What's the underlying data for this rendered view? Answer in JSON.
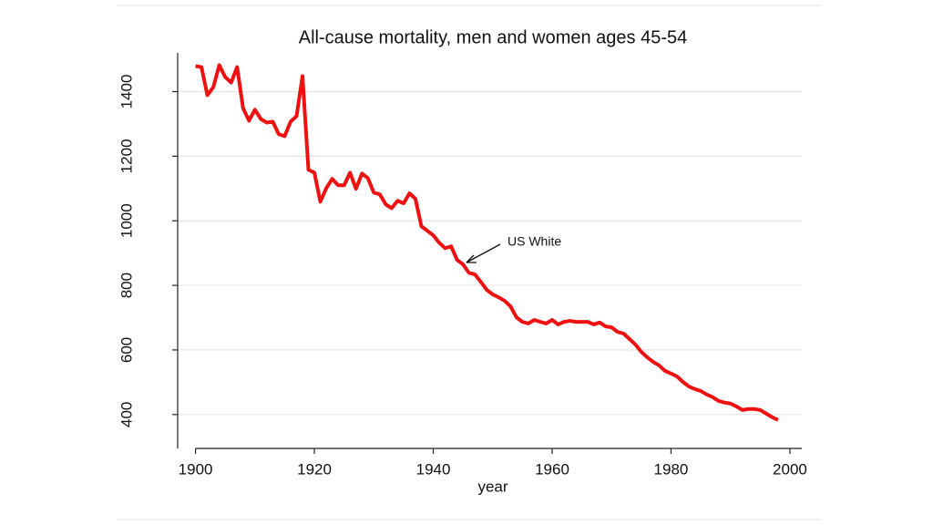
{
  "chart_data": {
    "type": "line",
    "title": "All-cause mortality, men and women ages 45-54",
    "x_label": "year",
    "annotation": "US White",
    "color": "#ee1111",
    "grid": true,
    "xlim": [
      1897,
      2002
    ],
    "xticks": [
      1900,
      1920,
      1940,
      1960,
      1980,
      2000
    ],
    "ylim": [
      295,
      1520
    ],
    "yticks": [
      400,
      600,
      800,
      1000,
      1200,
      1400
    ],
    "x": [
      1900,
      1901,
      1902,
      1903,
      1904,
      1905,
      1906,
      1907,
      1908,
      1909,
      1910,
      1911,
      1912,
      1913,
      1914,
      1915,
      1916,
      1917,
      1918,
      1919,
      1920,
      1921,
      1922,
      1923,
      1924,
      1925,
      1926,
      1927,
      1928,
      1929,
      1930,
      1931,
      1932,
      1933,
      1934,
      1935,
      1936,
      1937,
      1938,
      1939,
      1940,
      1941,
      1942,
      1943,
      1944,
      1945,
      1946,
      1947,
      1948,
      1949,
      1950,
      1951,
      1952,
      1953,
      1954,
      1955,
      1956,
      1957,
      1958,
      1959,
      1960,
      1961,
      1962,
      1963,
      1964,
      1965,
      1966,
      1967,
      1968,
      1969,
      1970,
      1971,
      1972,
      1973,
      1974,
      1975,
      1976,
      1977,
      1978,
      1979,
      1980,
      1981,
      1982,
      1983,
      1984,
      1985,
      1986,
      1987,
      1988,
      1989,
      1990,
      1991,
      1992,
      1993,
      1994,
      1995,
      1996,
      1997,
      1998
    ],
    "values": [
      1479,
      1476,
      1389,
      1414,
      1482,
      1445,
      1428,
      1476,
      1349,
      1310,
      1344,
      1315,
      1304,
      1307,
      1268,
      1262,
      1307,
      1324,
      1448,
      1158,
      1149,
      1059,
      1101,
      1130,
      1110,
      1110,
      1149,
      1099,
      1146,
      1132,
      1087,
      1082,
      1051,
      1039,
      1062,
      1054,
      1085,
      1068,
      983,
      969,
      955,
      932,
      915,
      921,
      879,
      865,
      839,
      834,
      811,
      786,
      772,
      763,
      752,
      735,
      701,
      687,
      682,
      693,
      687,
      682,
      693,
      679,
      687,
      690,
      687,
      687,
      687,
      679,
      685,
      673,
      670,
      656,
      651,
      634,
      617,
      594,
      577,
      563,
      552,
      535,
      527,
      518,
      501,
      487,
      479,
      473,
      462,
      454,
      442,
      437,
      434,
      425,
      414,
      417,
      417,
      414,
      403,
      392,
      383
    ]
  }
}
